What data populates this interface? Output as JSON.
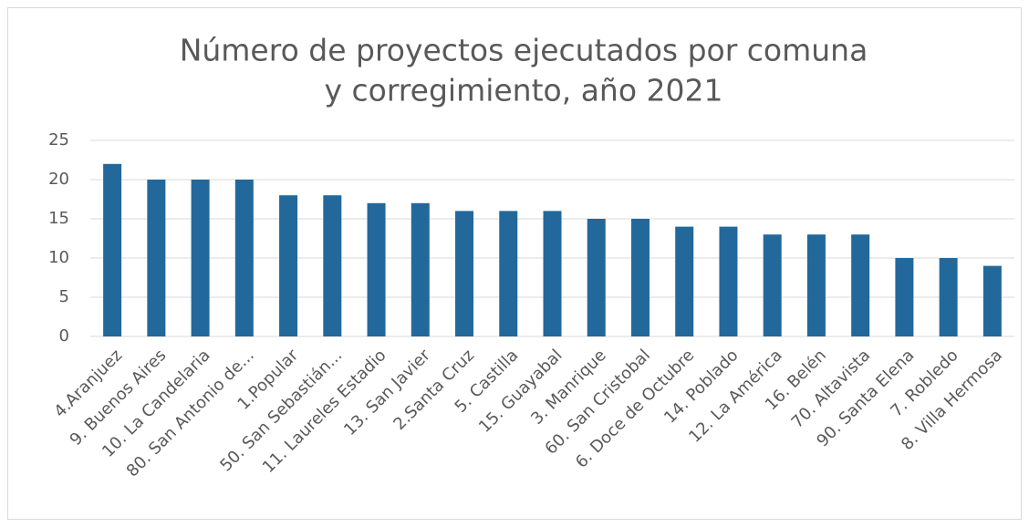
{
  "chart_data": {
    "type": "bar",
    "title": [
      "Número de proyectos ejecutados por comuna",
      "y corregimiento, año 2021"
    ],
    "categories": [
      "4.Aranjuez",
      "9. Buenos Aires",
      "10. La Candelaria",
      "80. San Antonio de...",
      "1.Popular",
      "50. San Sebastián...",
      "11. Laureles Estadio",
      "13. San Javier",
      "2.Santa Cruz",
      "5. Castilla",
      "15. Guayabal",
      "3. Manrique",
      "60. San Cristobal",
      "6. Doce de Octubre",
      "14. Poblado",
      "12. La América",
      "16. Belén",
      "70. Altavista",
      "90. Santa Elena",
      "7. Robledo",
      "8. Villa Hermosa"
    ],
    "values": [
      22,
      20,
      20,
      20,
      18,
      18,
      17,
      17,
      16,
      16,
      16,
      15,
      15,
      14,
      14,
      13,
      13,
      13,
      10,
      10,
      9
    ],
    "color": "#23689b",
    "ylim": [
      0,
      25
    ],
    "yticks": [
      0,
      5,
      10,
      15,
      20,
      25
    ],
    "grid": true
  }
}
